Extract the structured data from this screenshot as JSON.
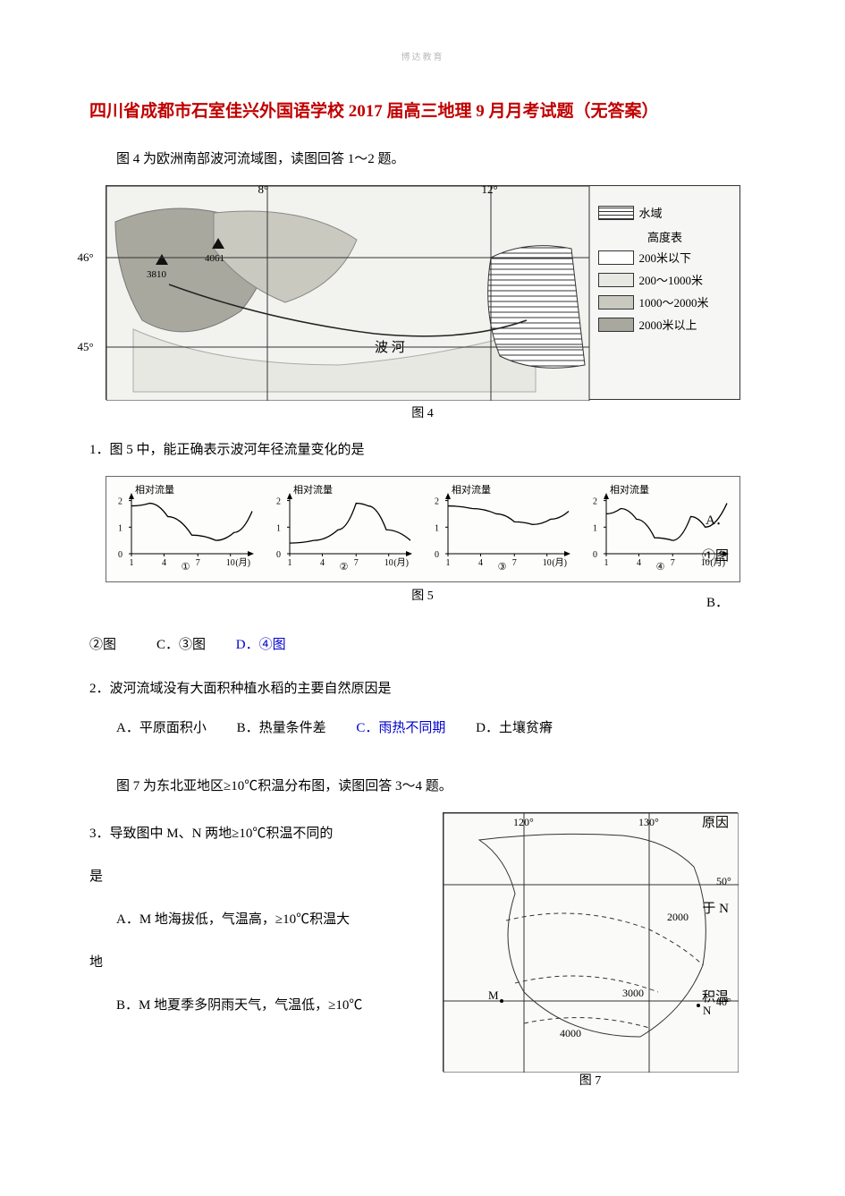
{
  "watermark": "博达教育",
  "title": "四川省成都市石室佳兴外国语学校 2017 届高三地理 9 月月考试题（无答案）",
  "intro1": "图 4 为欧洲南部波河流域图，读图回答 1～2 题。",
  "fig4": {
    "caption": "图 4",
    "lon_ticks": [
      "8°",
      "12°"
    ],
    "lat_ticks": [
      "46°",
      "45°"
    ],
    "peaks": [
      "3810",
      "4061"
    ],
    "river_label": "波    河",
    "legend_title_water": "水域",
    "legend_title_elev": "高度表",
    "legend_items": [
      {
        "label": "200米以下",
        "fill": "#ffffff"
      },
      {
        "label": "200～1000米",
        "fill": "#e8e8e2"
      },
      {
        "label": "1000～2000米",
        "fill": "#c9c9c0"
      },
      {
        "label": "2000米以上",
        "fill": "#a8a89e"
      }
    ],
    "water_pattern": "hatch"
  },
  "q1": {
    "stem": "1．图 5 中，能正确表示波河年径流量变化的是",
    "side_letters": [
      "A．",
      "①图",
      "B．"
    ],
    "options_line": "②图　　　C．③图　　D．④图",
    "highlight_option": "D．④图"
  },
  "fig5": {
    "caption": "图 5",
    "y_title": "相对流量",
    "y_ticks": [
      "0",
      "1",
      "2"
    ],
    "x_ticks": [
      "1",
      "4",
      "7",
      "10",
      "(月)"
    ],
    "panels": [
      {
        "id": "①",
        "curve": [
          [
            0,
            1.8
          ],
          [
            0.15,
            1.9
          ],
          [
            0.3,
            1.4
          ],
          [
            0.5,
            0.7
          ],
          [
            0.7,
            0.5
          ],
          [
            0.85,
            0.8
          ],
          [
            1,
            1.6
          ]
        ]
      },
      {
        "id": "②",
        "curve": [
          [
            0,
            0.4
          ],
          [
            0.2,
            0.5
          ],
          [
            0.4,
            0.9
          ],
          [
            0.55,
            1.9
          ],
          [
            0.65,
            1.8
          ],
          [
            0.8,
            0.9
          ],
          [
            1,
            0.5
          ]
        ]
      },
      {
        "id": "③",
        "curve": [
          [
            0,
            1.8
          ],
          [
            0.2,
            1.7
          ],
          [
            0.4,
            1.5
          ],
          [
            0.55,
            1.2
          ],
          [
            0.7,
            1.1
          ],
          [
            0.85,
            1.3
          ],
          [
            1,
            1.6
          ]
        ]
      },
      {
        "id": "④",
        "curve": [
          [
            0,
            1.5
          ],
          [
            0.12,
            1.7
          ],
          [
            0.25,
            1.3
          ],
          [
            0.4,
            0.6
          ],
          [
            0.55,
            0.5
          ],
          [
            0.7,
            1.4
          ],
          [
            0.82,
            1.0
          ],
          [
            1,
            1.9
          ]
        ]
      }
    ]
  },
  "q2": {
    "stem": "2．波河流域没有大面积种植水稻的主要自然原因是",
    "options": {
      "A": "A．平原面积小",
      "B": "B．热量条件差",
      "C": "C．雨热不同期",
      "D": "D．土壤贫瘠"
    },
    "highlight": "C"
  },
  "intro2": "图 7 为东北亚地区≥10℃积温分布图，读图回答 3～4 题。",
  "q3": {
    "stem_left": "3．导致图中 M、N 两地≥10℃积温不同的",
    "stem_right_1": "原因",
    "is_word": "是",
    "optA_left": "A．M 地海拔低，气温高，≥10℃积温大",
    "optA_right": "于 N",
    "optA_tail": "地",
    "optB_left": "B．M 地夏季多阴雨天气，气温低，≥10℃",
    "optB_right": "积温"
  },
  "fig7": {
    "caption": "图 7",
    "lon_ticks": [
      "120°",
      "130°"
    ],
    "lat_ticks": [
      "50°",
      "40°"
    ],
    "contour_labels": [
      "2000",
      "3000",
      "4000"
    ],
    "points": [
      "M",
      "N"
    ]
  },
  "colors": {
    "title": "#c00000",
    "link": "#0000cc",
    "text": "#000000",
    "border": "#333333",
    "paper": "#ffffff"
  }
}
